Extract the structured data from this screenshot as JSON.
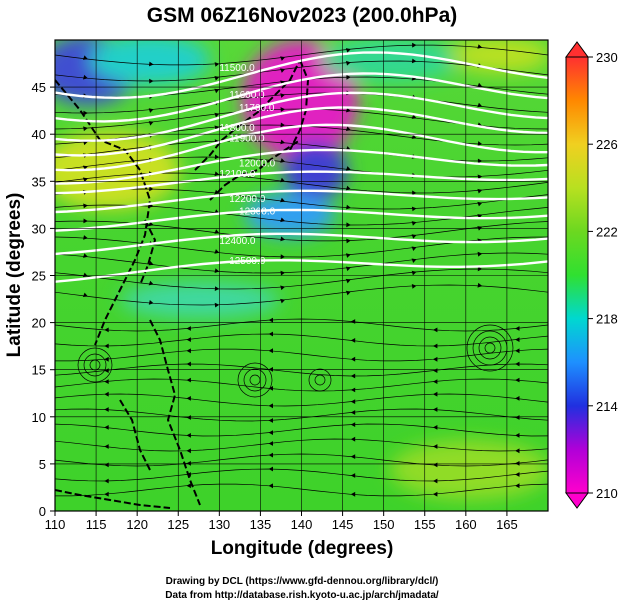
{
  "chart_data": {
    "type": "heatmap",
    "title": "GSM 06Z16Nov2023 (200.0hPa)",
    "xlabel": "Longitude (degrees)",
    "ylabel": "Latitude  (degrees)",
    "xlim": [
      110,
      170
    ],
    "ylim": [
      0,
      50
    ],
    "xticks": [
      110,
      115,
      120,
      125,
      130,
      135,
      140,
      145,
      150,
      155,
      160,
      165
    ],
    "yticks": [
      0,
      5,
      10,
      15,
      20,
      25,
      30,
      35,
      40,
      45
    ],
    "colorbar": {
      "min": 210,
      "max": 230,
      "ticks": [
        210,
        214,
        218,
        222,
        226,
        230
      ],
      "colors": [
        "#ff00cc",
        "#b000d8",
        "#2030e0",
        "#1e90ff",
        "#00d8d0",
        "#30e030",
        "#6cd820",
        "#b8e020",
        "#f0d020",
        "#ff8800",
        "#ff3030"
      ]
    },
    "contours": [
      {
        "label": "11500.0",
        "lat_start": 45.5,
        "lat_end": 47.5
      },
      {
        "label": "11600.0",
        "lat_start": 43.0,
        "lat_end": 45.5
      },
      {
        "label": "11700.0",
        "lat_start": 41.0,
        "lat_end": 43.5
      },
      {
        "label": "11800.0",
        "lat_start": 39.5,
        "lat_end": 42.0
      },
      {
        "label": "11900.0",
        "lat_start": 38.0,
        "lat_end": 40.0
      },
      {
        "label": "12000.0",
        "lat_start": 36.0,
        "lat_end": 38.0
      },
      {
        "label": "12100.0",
        "lat_start": 34.5,
        "lat_end": 36.0
      },
      {
        "label": "12200.0",
        "lat_start": 32.5,
        "lat_end": 34.0
      },
      {
        "label": "12300.0",
        "lat_start": 30.5,
        "lat_end": 32.0
      },
      {
        "label": "12400.0",
        "lat_start": 28.0,
        "lat_end": 29.5
      },
      {
        "label": "12500.0",
        "lat_start": 25.0,
        "lat_end": 27.0
      }
    ],
    "credits": [
      "Drawing by DCL (https://www.gfd-dennou.org/library/dcl/)",
      "Data from http://database.rish.kyoto-u.ac.jp/arch/jmadata/"
    ]
  }
}
